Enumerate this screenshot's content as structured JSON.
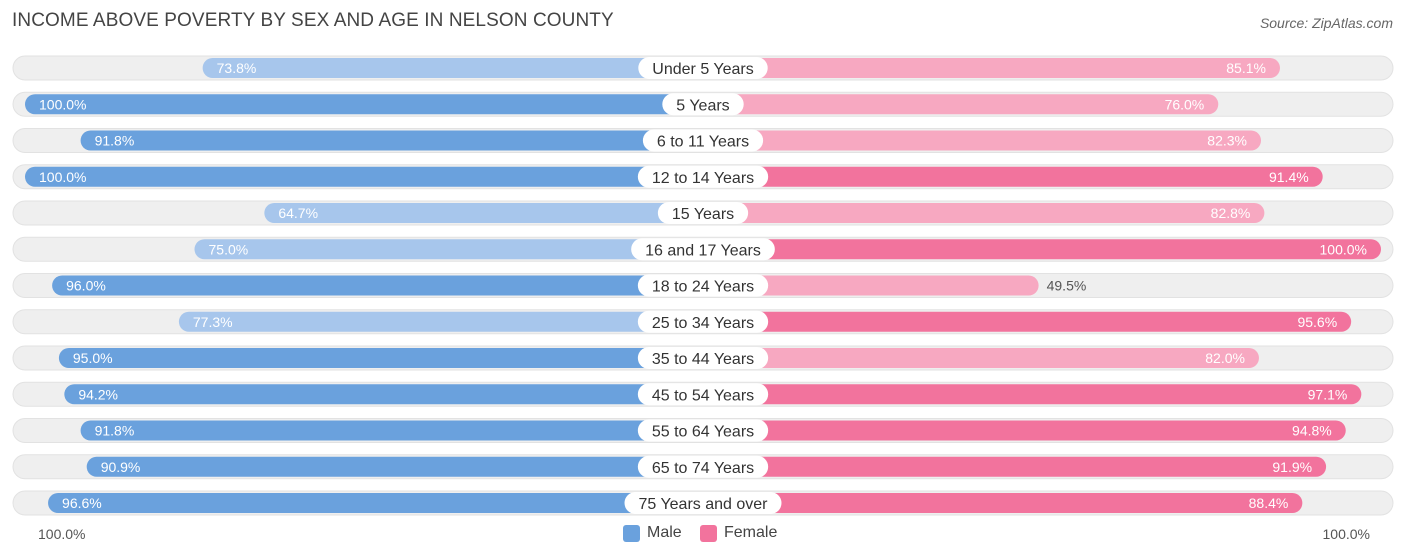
{
  "header": {
    "title": "INCOME ABOVE POVERTY BY SEX AND AGE IN NELSON COUNTY",
    "source": "Source: ZipAtlas.com"
  },
  "colors": {
    "male_strong": "#6aa1dd",
    "male_light": "#a7c6ec",
    "female_strong": "#f2739d",
    "female_light": "#f7a8c1",
    "row_bg": "#efefef"
  },
  "legend": {
    "male_label": "Male",
    "female_label": "Female",
    "left_axis": "100.0%",
    "right_axis": "100.0%"
  },
  "chart_data": {
    "type": "bar",
    "orientation": "diverging-horizontal",
    "title": "INCOME ABOVE POVERTY BY SEX AND AGE IN NELSON COUNTY",
    "xlim": [
      0,
      100
    ],
    "categories": [
      "Under 5 Years",
      "5 Years",
      "6 to 11 Years",
      "12 to 14 Years",
      "15 Years",
      "16 and 17 Years",
      "18 to 24 Years",
      "25 to 34 Years",
      "35 to 44 Years",
      "45 to 54 Years",
      "55 to 64 Years",
      "65 to 74 Years",
      "75 Years and over"
    ],
    "series": [
      {
        "name": "Male",
        "values": [
          73.8,
          100.0,
          91.8,
          100.0,
          64.7,
          75.0,
          96.0,
          77.3,
          95.0,
          94.2,
          91.8,
          90.9,
          96.6
        ],
        "labels": [
          "73.8%",
          "100.0%",
          "91.8%",
          "100.0%",
          "64.7%",
          "75.0%",
          "96.0%",
          "77.3%",
          "95.0%",
          "94.2%",
          "91.8%",
          "90.9%",
          "96.6%"
        ]
      },
      {
        "name": "Female",
        "values": [
          85.1,
          76.0,
          82.3,
          91.4,
          82.8,
          100.0,
          49.5,
          95.6,
          82.0,
          97.1,
          94.8,
          91.9,
          88.4
        ],
        "labels": [
          "85.1%",
          "76.0%",
          "82.3%",
          "91.4%",
          "82.8%",
          "100.0%",
          "49.5%",
          "95.6%",
          "82.0%",
          "97.1%",
          "94.8%",
          "91.9%",
          "88.4%"
        ]
      }
    ]
  }
}
